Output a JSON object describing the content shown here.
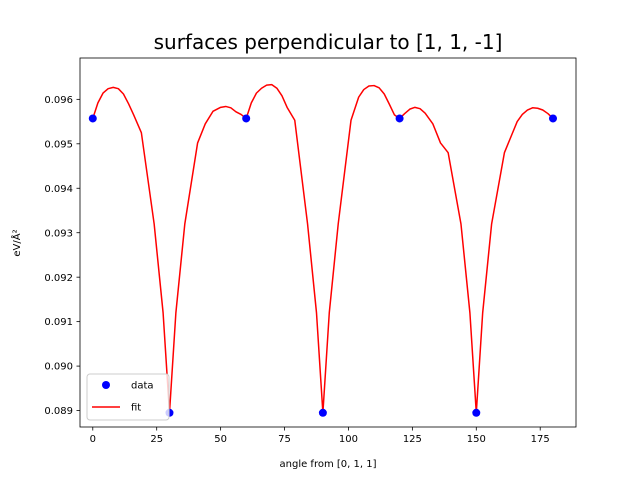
{
  "chart_data": {
    "type": "line",
    "title": "surfaces perpendicular to [1, 1, -1]",
    "xlabel": "angle from [0, 1, 1]",
    "ylabel": "eV/Å²",
    "xlim": [
      -5,
      189
    ],
    "ylim": [
      0.08863,
      0.09693
    ],
    "xticks": [
      0,
      25,
      50,
      75,
      100,
      125,
      150,
      175
    ],
    "xtick_labels": [
      "0",
      "25",
      "50",
      "75",
      "100",
      "125",
      "150",
      "175"
    ],
    "yticks": [
      0.089,
      0.09,
      0.091,
      0.092,
      0.093,
      0.094,
      0.095,
      0.096
    ],
    "ytick_labels": [
      "0.089",
      "0.090",
      "0.091",
      "0.092",
      "0.093",
      "0.094",
      "0.095",
      "0.096"
    ],
    "grid": false,
    "legend_position": "lower-left",
    "series": [
      {
        "name": "data",
        "kind": "scatter",
        "color": "#0000ff",
        "x": [
          0,
          30,
          60,
          90,
          120,
          150,
          180
        ],
        "y": [
          0.09557,
          0.08895,
          0.09557,
          0.08895,
          0.09557,
          0.08895,
          0.09557
        ]
      },
      {
        "name": "fit",
        "kind": "line",
        "color": "#ff0000",
        "x": [
          0,
          2,
          4,
          6,
          8,
          10,
          12,
          14,
          16,
          19,
          24,
          27.5,
          30,
          32.5,
          36,
          41,
          44,
          47,
          50,
          52,
          54,
          56,
          58,
          60,
          62,
          64,
          66,
          68,
          70,
          72,
          74,
          76,
          79,
          84,
          87.5,
          90,
          92.5,
          96,
          101,
          104,
          106,
          108,
          110,
          112,
          114,
          116,
          118,
          120,
          122,
          124,
          126,
          128,
          130,
          133,
          136,
          139,
          144,
          147.5,
          150,
          152.5,
          156,
          161,
          164,
          166,
          168,
          170,
          172,
          174,
          176,
          178,
          180
        ],
        "y": [
          0.09557,
          0.09592,
          0.09614,
          0.09624,
          0.09627,
          0.09624,
          0.09612,
          0.0959,
          0.09565,
          0.09525,
          0.0932,
          0.0912,
          0.08895,
          0.0912,
          0.0932,
          0.09502,
          0.09545,
          0.09573,
          0.09582,
          0.09584,
          0.09581,
          0.09572,
          0.09566,
          0.09557,
          0.09592,
          0.09614,
          0.09625,
          0.09632,
          0.09633,
          0.09625,
          0.09608,
          0.09582,
          0.09553,
          0.0932,
          0.0912,
          0.08895,
          0.0912,
          0.0932,
          0.09553,
          0.09605,
          0.09622,
          0.0963,
          0.09631,
          0.09626,
          0.09612,
          0.09589,
          0.09565,
          0.09557,
          0.09568,
          0.09578,
          0.09582,
          0.09579,
          0.09569,
          0.09545,
          0.09502,
          0.0948,
          0.0932,
          0.0912,
          0.08895,
          0.0912,
          0.0932,
          0.0948,
          0.09522,
          0.0955,
          0.09566,
          0.09576,
          0.09581,
          0.0958,
          0.09576,
          0.09568,
          0.09557
        ]
      }
    ]
  }
}
